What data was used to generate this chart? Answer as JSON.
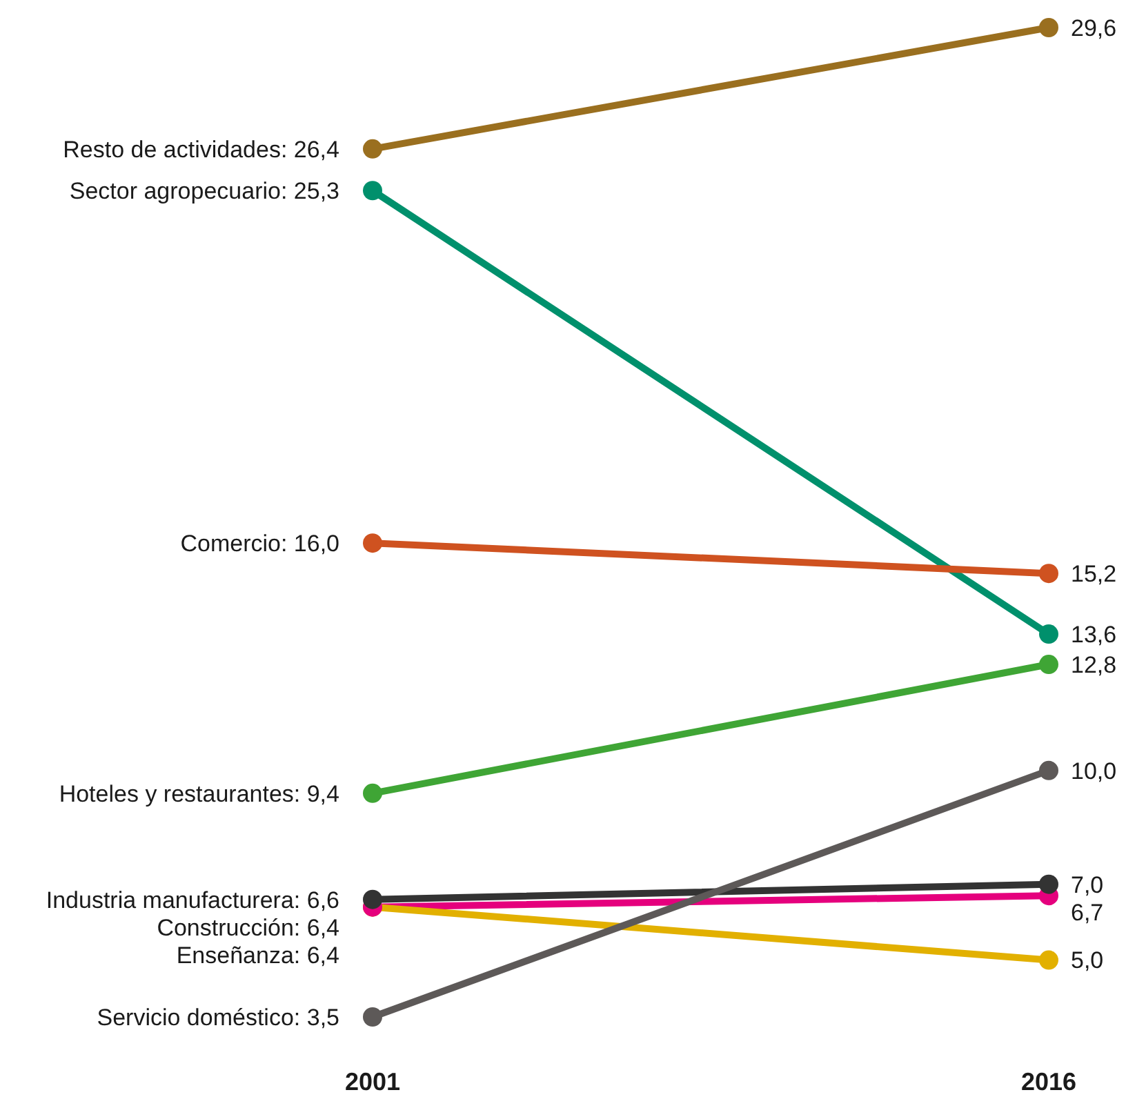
{
  "chart_data": {
    "type": "line",
    "categories": [
      "2001",
      "2016"
    ],
    "marker": "circle",
    "line_style": "solid",
    "series": [
      {
        "name": "Resto de actividades:",
        "color": "#9a6f1f",
        "values": [
          26.4,
          29.6
        ],
        "value_labels": [
          "26,4",
          "29,6"
        ]
      },
      {
        "name": "Sector agropecuario:",
        "color": "#00906c",
        "values": [
          25.3,
          13.6
        ],
        "value_labels": [
          "25,3",
          "13,6"
        ]
      },
      {
        "name": "Comercio:",
        "color": "#cf5220",
        "values": [
          16.0,
          15.2
        ],
        "value_labels": [
          "16,0",
          "15,2"
        ]
      },
      {
        "name": "Hoteles y restaurantes:",
        "color": "#3fa535",
        "values": [
          9.4,
          12.8
        ],
        "value_labels": [
          "9,4",
          "12,8"
        ]
      },
      {
        "name": "Industria manufacturera:",
        "color": "#333333",
        "values": [
          6.6,
          7.0
        ],
        "value_labels": [
          "6,6",
          "7,0"
        ]
      },
      {
        "name": "Construcción:",
        "color": "#e5007d",
        "values": [
          6.4,
          6.7
        ],
        "value_labels": [
          "6,4",
          "6,7"
        ]
      },
      {
        "name": "Enseñanza:",
        "color": "#e2b000",
        "values": [
          6.4,
          5.0
        ],
        "value_labels": [
          "6,4",
          "5,0"
        ]
      },
      {
        "name": "Servicio doméstico:",
        "color": "#5d5958",
        "values": [
          3.5,
          10.0
        ],
        "value_labels": [
          "3,5",
          "10,0"
        ]
      }
    ]
  }
}
